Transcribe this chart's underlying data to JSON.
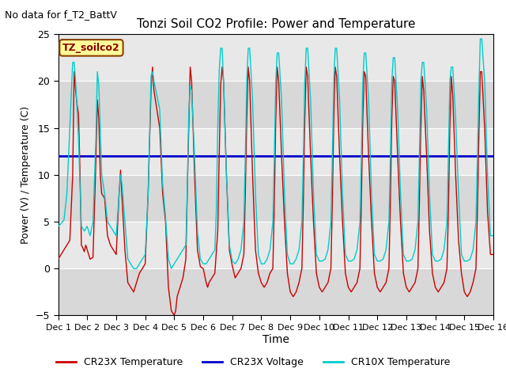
{
  "title": "Tonzi Soil CO2 Profile: Power and Temperature",
  "no_data_text": "No data for f_T2_BattV",
  "legend_box_text": "TZ_soilco2",
  "xlabel": "Time",
  "ylabel": "Power (V) / Temperature (C)",
  "ylim": [
    -5,
    25
  ],
  "xlim": [
    0,
    15
  ],
  "yticks": [
    -5,
    0,
    5,
    10,
    15,
    20,
    25
  ],
  "xtick_labels": [
    "Dec 1",
    "Dec 2",
    "Dec 3",
    "Dec 4",
    "Dec 5",
    "Dec 6",
    "Dec 7",
    "Dec 8",
    "Dec 9",
    "Dec 10",
    "Dec 11",
    "Dec 12",
    "Dec 13",
    "Dec 14",
    "Dec 15",
    "Dec 16"
  ],
  "xtick_positions": [
    0,
    1,
    2,
    3,
    4,
    5,
    6,
    7,
    8,
    9,
    10,
    11,
    12,
    13,
    14,
    15
  ],
  "voltage_value": 12.0,
  "plot_bg_color": "#e8e8e8",
  "fig_bg_color": "#ffffff",
  "cr23x_temp_color": "#cc0000",
  "cr23x_volt_color": "#0000cc",
  "cr10x_temp_color": "#00cccc",
  "legend_series": [
    "CR23X Temperature",
    "CR23X Voltage",
    "CR10X Temperature"
  ],
  "legend_colors": [
    "#cc0000",
    "#0000cc",
    "#00cccc"
  ],
  "grid_color": "#ffffff",
  "band_colors": [
    "#d8d8d8",
    "#e8e8e8"
  ],
  "cr23x_temp_data": [
    [
      0.0,
      1.0
    ],
    [
      0.1,
      1.5
    ],
    [
      0.2,
      2.0
    ],
    [
      0.3,
      2.5
    ],
    [
      0.4,
      3.0
    ],
    [
      0.5,
      10.0
    ],
    [
      0.55,
      21.0
    ],
    [
      0.6,
      19.0
    ],
    [
      0.65,
      17.5
    ],
    [
      0.7,
      16.5
    ],
    [
      0.75,
      10.5
    ],
    [
      0.8,
      2.5
    ],
    [
      0.85,
      2.2
    ],
    [
      0.9,
      1.8
    ],
    [
      0.95,
      2.5
    ],
    [
      1.0,
      2.0
    ],
    [
      1.05,
      1.5
    ],
    [
      1.1,
      1.0
    ],
    [
      1.2,
      1.2
    ],
    [
      1.3,
      11.5
    ],
    [
      1.35,
      18.0
    ],
    [
      1.4,
      16.0
    ],
    [
      1.45,
      10.0
    ],
    [
      1.5,
      8.0
    ],
    [
      1.6,
      7.5
    ],
    [
      1.7,
      3.5
    ],
    [
      1.8,
      2.5
    ],
    [
      1.9,
      2.0
    ],
    [
      2.0,
      1.5
    ],
    [
      2.1,
      8.0
    ],
    [
      2.15,
      10.5
    ],
    [
      2.2,
      7.5
    ],
    [
      2.3,
      2.0
    ],
    [
      2.4,
      -1.5
    ],
    [
      2.5,
      -2.0
    ],
    [
      2.6,
      -2.5
    ],
    [
      2.7,
      -1.5
    ],
    [
      2.8,
      -0.5
    ],
    [
      2.9,
      0.0
    ],
    [
      3.0,
      0.5
    ],
    [
      3.1,
      8.0
    ],
    [
      3.2,
      19.0
    ],
    [
      3.25,
      21.5
    ],
    [
      3.3,
      19.0
    ],
    [
      3.5,
      15.0
    ],
    [
      3.6,
      8.0
    ],
    [
      3.7,
      5.0
    ],
    [
      3.8,
      -2.0
    ],
    [
      3.9,
      -4.5
    ],
    [
      4.0,
      -5.0
    ],
    [
      4.05,
      -4.5
    ],
    [
      4.1,
      -3.0
    ],
    [
      4.2,
      -2.0
    ],
    [
      4.3,
      -1.0
    ],
    [
      4.4,
      1.0
    ],
    [
      4.45,
      8.0
    ],
    [
      4.5,
      15.0
    ],
    [
      4.55,
      21.5
    ],
    [
      4.6,
      20.0
    ],
    [
      4.7,
      10.0
    ],
    [
      4.8,
      2.0
    ],
    [
      4.9,
      0.2
    ],
    [
      5.0,
      0.0
    ],
    [
      5.1,
      -1.5
    ],
    [
      5.15,
      -2.0
    ],
    [
      5.2,
      -1.5
    ],
    [
      5.3,
      -1.0
    ],
    [
      5.4,
      -0.5
    ],
    [
      5.5,
      4.0
    ],
    [
      5.55,
      12.0
    ],
    [
      5.6,
      19.5
    ],
    [
      5.65,
      21.5
    ],
    [
      5.7,
      20.0
    ],
    [
      5.8,
      10.0
    ],
    [
      5.9,
      2.0
    ],
    [
      6.0,
      0.3
    ],
    [
      6.1,
      -1.0
    ],
    [
      6.2,
      -0.5
    ],
    [
      6.3,
      0.0
    ],
    [
      6.4,
      1.5
    ],
    [
      6.45,
      8.0
    ],
    [
      6.5,
      16.0
    ],
    [
      6.55,
      21.5
    ],
    [
      6.6,
      20.0
    ],
    [
      6.7,
      10.0
    ],
    [
      6.8,
      2.0
    ],
    [
      6.9,
      -0.5
    ],
    [
      7.0,
      -1.5
    ],
    [
      7.1,
      -2.0
    ],
    [
      7.2,
      -1.5
    ],
    [
      7.3,
      -0.5
    ],
    [
      7.4,
      0.0
    ],
    [
      7.45,
      7.0
    ],
    [
      7.5,
      16.0
    ],
    [
      7.55,
      21.5
    ],
    [
      7.6,
      20.0
    ],
    [
      7.7,
      12.0
    ],
    [
      7.8,
      5.0
    ],
    [
      7.9,
      -0.5
    ],
    [
      8.0,
      -2.5
    ],
    [
      8.1,
      -3.0
    ],
    [
      8.2,
      -2.5
    ],
    [
      8.3,
      -1.5
    ],
    [
      8.4,
      0.0
    ],
    [
      8.45,
      7.0
    ],
    [
      8.5,
      16.0
    ],
    [
      8.55,
      21.5
    ],
    [
      8.6,
      20.5
    ],
    [
      8.7,
      12.0
    ],
    [
      8.8,
      5.0
    ],
    [
      8.9,
      -0.5
    ],
    [
      9.0,
      -2.0
    ],
    [
      9.1,
      -2.5
    ],
    [
      9.2,
      -2.0
    ],
    [
      9.3,
      -1.5
    ],
    [
      9.4,
      0.0
    ],
    [
      9.45,
      7.0
    ],
    [
      9.5,
      16.0
    ],
    [
      9.55,
      21.5
    ],
    [
      9.6,
      20.5
    ],
    [
      9.7,
      12.0
    ],
    [
      9.8,
      5.0
    ],
    [
      9.9,
      -0.5
    ],
    [
      10.0,
      -2.0
    ],
    [
      10.1,
      -2.5
    ],
    [
      10.2,
      -2.0
    ],
    [
      10.3,
      -1.5
    ],
    [
      10.4,
      0.0
    ],
    [
      10.45,
      7.0
    ],
    [
      10.5,
      16.0
    ],
    [
      10.55,
      21.0
    ],
    [
      10.6,
      20.5
    ],
    [
      10.7,
      12.0
    ],
    [
      10.8,
      5.0
    ],
    [
      10.9,
      -0.5
    ],
    [
      11.0,
      -2.0
    ],
    [
      11.1,
      -2.5
    ],
    [
      11.2,
      -2.0
    ],
    [
      11.3,
      -1.5
    ],
    [
      11.4,
      0.0
    ],
    [
      11.45,
      7.0
    ],
    [
      11.5,
      16.0
    ],
    [
      11.55,
      20.5
    ],
    [
      11.6,
      20.0
    ],
    [
      11.7,
      12.0
    ],
    [
      11.8,
      5.0
    ],
    [
      11.9,
      -0.5
    ],
    [
      12.0,
      -2.0
    ],
    [
      12.1,
      -2.5
    ],
    [
      12.2,
      -2.0
    ],
    [
      12.3,
      -1.5
    ],
    [
      12.4,
      0.0
    ],
    [
      12.45,
      7.0
    ],
    [
      12.5,
      15.0
    ],
    [
      12.55,
      20.5
    ],
    [
      12.6,
      19.0
    ],
    [
      12.7,
      12.0
    ],
    [
      12.8,
      4.0
    ],
    [
      12.9,
      -0.5
    ],
    [
      13.0,
      -2.0
    ],
    [
      13.1,
      -2.5
    ],
    [
      13.2,
      -2.0
    ],
    [
      13.3,
      -1.5
    ],
    [
      13.4,
      0.0
    ],
    [
      13.45,
      6.0
    ],
    [
      13.5,
      15.0
    ],
    [
      13.55,
      20.5
    ],
    [
      13.6,
      18.5
    ],
    [
      13.7,
      10.0
    ],
    [
      13.8,
      3.0
    ],
    [
      13.9,
      -0.5
    ],
    [
      14.0,
      -2.5
    ],
    [
      14.1,
      -3.0
    ],
    [
      14.2,
      -2.5
    ],
    [
      14.3,
      -1.5
    ],
    [
      14.4,
      0.0
    ],
    [
      14.45,
      6.0
    ],
    [
      14.5,
      14.0
    ],
    [
      14.55,
      21.0
    ],
    [
      14.6,
      21.0
    ],
    [
      14.7,
      15.0
    ],
    [
      14.8,
      6.0
    ],
    [
      14.9,
      1.5
    ],
    [
      15.0,
      1.5
    ]
  ],
  "cr10x_temp_data": [
    [
      0.0,
      4.5
    ],
    [
      0.1,
      4.8
    ],
    [
      0.2,
      5.2
    ],
    [
      0.3,
      8.0
    ],
    [
      0.4,
      15.0
    ],
    [
      0.5,
      22.0
    ],
    [
      0.55,
      22.0
    ],
    [
      0.6,
      20.0
    ],
    [
      0.65,
      17.0
    ],
    [
      0.7,
      14.0
    ],
    [
      0.75,
      9.0
    ],
    [
      0.8,
      4.5
    ],
    [
      0.9,
      4.0
    ],
    [
      1.0,
      4.5
    ],
    [
      1.1,
      3.5
    ],
    [
      1.2,
      5.0
    ],
    [
      1.3,
      14.0
    ],
    [
      1.35,
      21.0
    ],
    [
      1.4,
      19.5
    ],
    [
      1.45,
      15.0
    ],
    [
      1.5,
      10.0
    ],
    [
      1.6,
      8.0
    ],
    [
      1.7,
      5.0
    ],
    [
      1.8,
      4.5
    ],
    [
      1.9,
      4.0
    ],
    [
      2.0,
      3.5
    ],
    [
      2.1,
      8.0
    ],
    [
      2.15,
      10.0
    ],
    [
      2.2,
      9.0
    ],
    [
      2.3,
      5.0
    ],
    [
      2.4,
      1.0
    ],
    [
      2.5,
      0.5
    ],
    [
      2.6,
      0.0
    ],
    [
      2.7,
      0.0
    ],
    [
      2.8,
      0.5
    ],
    [
      2.9,
      1.0
    ],
    [
      3.0,
      1.5
    ],
    [
      3.1,
      8.0
    ],
    [
      3.2,
      20.5
    ],
    [
      3.25,
      21.0
    ],
    [
      3.3,
      20.0
    ],
    [
      3.5,
      17.0
    ],
    [
      3.6,
      9.0
    ],
    [
      3.7,
      5.5
    ],
    [
      3.8,
      1.0
    ],
    [
      3.9,
      0.0
    ],
    [
      4.0,
      0.5
    ],
    [
      4.1,
      1.0
    ],
    [
      4.2,
      1.5
    ],
    [
      4.3,
      2.0
    ],
    [
      4.4,
      2.5
    ],
    [
      4.45,
      8.5
    ],
    [
      4.5,
      16.5
    ],
    [
      4.55,
      19.5
    ],
    [
      4.6,
      19.0
    ],
    [
      4.7,
      12.0
    ],
    [
      4.8,
      4.0
    ],
    [
      4.9,
      1.0
    ],
    [
      5.0,
      0.5
    ],
    [
      5.1,
      0.5
    ],
    [
      5.2,
      1.0
    ],
    [
      5.3,
      1.5
    ],
    [
      5.4,
      2.0
    ],
    [
      5.45,
      6.0
    ],
    [
      5.5,
      15.0
    ],
    [
      5.55,
      21.0
    ],
    [
      5.6,
      23.5
    ],
    [
      5.65,
      23.5
    ],
    [
      5.7,
      20.0
    ],
    [
      5.8,
      10.0
    ],
    [
      5.9,
      2.5
    ],
    [
      6.0,
      0.8
    ],
    [
      6.1,
      0.5
    ],
    [
      6.2,
      1.0
    ],
    [
      6.3,
      2.0
    ],
    [
      6.4,
      5.0
    ],
    [
      6.45,
      12.0
    ],
    [
      6.5,
      20.0
    ],
    [
      6.55,
      23.5
    ],
    [
      6.6,
      23.5
    ],
    [
      6.7,
      18.0
    ],
    [
      6.8,
      8.0
    ],
    [
      6.9,
      1.5
    ],
    [
      7.0,
      0.5
    ],
    [
      7.1,
      0.5
    ],
    [
      7.2,
      1.0
    ],
    [
      7.3,
      2.0
    ],
    [
      7.4,
      5.0
    ],
    [
      7.45,
      12.0
    ],
    [
      7.5,
      20.0
    ],
    [
      7.55,
      23.0
    ],
    [
      7.6,
      23.0
    ],
    [
      7.7,
      18.0
    ],
    [
      7.8,
      8.0
    ],
    [
      7.9,
      1.5
    ],
    [
      8.0,
      0.5
    ],
    [
      8.1,
      0.5
    ],
    [
      8.2,
      1.0
    ],
    [
      8.3,
      2.0
    ],
    [
      8.4,
      5.0
    ],
    [
      8.45,
      12.0
    ],
    [
      8.5,
      20.0
    ],
    [
      8.55,
      23.5
    ],
    [
      8.6,
      23.5
    ],
    [
      8.7,
      18.0
    ],
    [
      8.8,
      8.0
    ],
    [
      8.9,
      1.5
    ],
    [
      9.0,
      0.8
    ],
    [
      9.1,
      0.8
    ],
    [
      9.2,
      1.0
    ],
    [
      9.3,
      2.0
    ],
    [
      9.4,
      5.0
    ],
    [
      9.45,
      12.0
    ],
    [
      9.5,
      20.0
    ],
    [
      9.55,
      23.5
    ],
    [
      9.6,
      23.5
    ],
    [
      9.7,
      18.0
    ],
    [
      9.8,
      8.0
    ],
    [
      9.9,
      1.5
    ],
    [
      10.0,
      0.8
    ],
    [
      10.1,
      0.8
    ],
    [
      10.2,
      1.0
    ],
    [
      10.3,
      2.0
    ],
    [
      10.4,
      5.0
    ],
    [
      10.45,
      12.0
    ],
    [
      10.5,
      20.0
    ],
    [
      10.55,
      23.0
    ],
    [
      10.6,
      23.0
    ],
    [
      10.7,
      18.0
    ],
    [
      10.8,
      8.0
    ],
    [
      10.9,
      1.5
    ],
    [
      11.0,
      0.8
    ],
    [
      11.1,
      0.8
    ],
    [
      11.2,
      1.0
    ],
    [
      11.3,
      2.0
    ],
    [
      11.4,
      5.0
    ],
    [
      11.45,
      12.0
    ],
    [
      11.5,
      20.0
    ],
    [
      11.55,
      22.5
    ],
    [
      11.6,
      22.5
    ],
    [
      11.7,
      17.0
    ],
    [
      11.8,
      8.0
    ],
    [
      11.9,
      1.5
    ],
    [
      12.0,
      0.8
    ],
    [
      12.1,
      0.8
    ],
    [
      12.2,
      1.0
    ],
    [
      12.3,
      2.0
    ],
    [
      12.4,
      5.0
    ],
    [
      12.45,
      12.0
    ],
    [
      12.5,
      20.0
    ],
    [
      12.55,
      22.0
    ],
    [
      12.6,
      22.0
    ],
    [
      12.7,
      17.0
    ],
    [
      12.8,
      8.0
    ],
    [
      12.9,
      1.5
    ],
    [
      13.0,
      0.8
    ],
    [
      13.1,
      0.8
    ],
    [
      13.2,
      1.0
    ],
    [
      13.3,
      2.0
    ],
    [
      13.4,
      5.0
    ],
    [
      13.45,
      12.0
    ],
    [
      13.5,
      20.0
    ],
    [
      13.55,
      21.5
    ],
    [
      13.6,
      21.5
    ],
    [
      13.7,
      16.0
    ],
    [
      13.8,
      8.0
    ],
    [
      13.9,
      1.5
    ],
    [
      14.0,
      0.8
    ],
    [
      14.1,
      0.8
    ],
    [
      14.2,
      1.0
    ],
    [
      14.3,
      2.0
    ],
    [
      14.4,
      5.0
    ],
    [
      14.45,
      12.0
    ],
    [
      14.5,
      19.0
    ],
    [
      14.55,
      24.5
    ],
    [
      14.6,
      24.5
    ],
    [
      14.7,
      20.0
    ],
    [
      14.8,
      10.0
    ],
    [
      14.9,
      3.5
    ],
    [
      15.0,
      3.5
    ]
  ]
}
